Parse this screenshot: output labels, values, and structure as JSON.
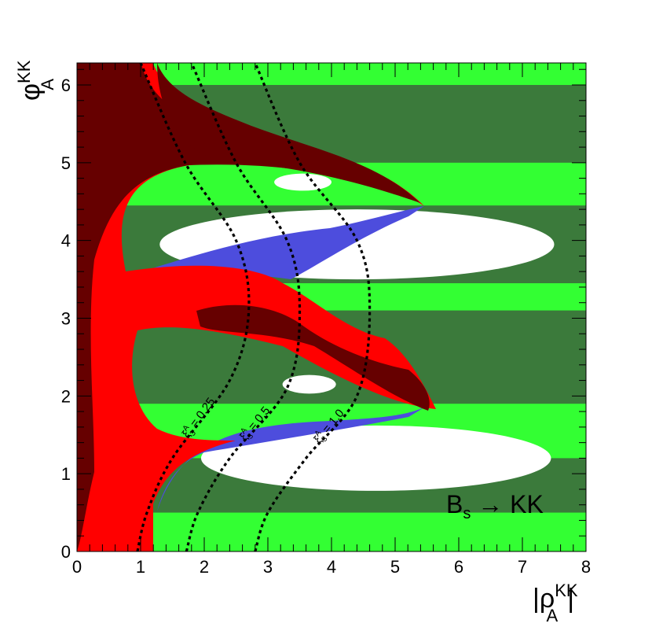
{
  "chart_data": {
    "type": "heatmap",
    "title": "",
    "xlabel": {
      "main": "|ρ",
      "sup": "KK",
      "sub": "A",
      "tail": "|"
    },
    "ylabel": {
      "main": "φ",
      "sup": "KK",
      "sub": "A"
    },
    "xlim": [
      0,
      8
    ],
    "ylim": [
      0,
      6.2832
    ],
    "xticks": [
      "0",
      "1",
      "2",
      "3",
      "4",
      "5",
      "6",
      "7",
      "8"
    ],
    "yticks": [
      "0",
      "1",
      "2",
      "3",
      "4",
      "5",
      "6"
    ],
    "grid": false,
    "colors": {
      "background_bright": "#33ff33",
      "background_dark": "#3b7a3b",
      "allowed_white": "#ffffff",
      "blue_band": "#4d4ddd",
      "red_region": "#ff0000",
      "dark_red_region": "#660000",
      "contour": "#000000"
    },
    "bright_bands_phi": [
      [
        0.0,
        0.5
      ],
      [
        1.2,
        1.9
      ],
      [
        3.1,
        3.45
      ],
      [
        4.45,
        5.0
      ],
      [
        6.0,
        6.2832
      ]
    ],
    "white_regions": [
      {
        "cx": 4.7,
        "cy": 1.2,
        "rx": 2.75,
        "ry": 0.42
      },
      {
        "cx": 4.4,
        "cy": 3.95,
        "rx": 3.1,
        "ry": 0.45
      },
      {
        "cx": 3.65,
        "cy": 2.15,
        "rx": 0.42,
        "ry": 0.12
      },
      {
        "cx": 3.55,
        "cy": 4.75,
        "rx": 0.45,
        "ry": 0.11
      }
    ],
    "contours": [
      {
        "label": "ξ3A = 0.25",
        "label_display": {
          "main": "ξ",
          "sub": "3",
          "sup": "A",
          "value": " = 0.25"
        },
        "points": [
          [
            0.95,
            0.0
          ],
          [
            1.1,
            0.5
          ],
          [
            1.5,
            1.2
          ],
          [
            2.4,
            2.2
          ],
          [
            2.7,
            3.1
          ],
          [
            2.5,
            4.0
          ],
          [
            1.7,
            5.0
          ],
          [
            1.0,
            6.2832
          ]
        ]
      },
      {
        "label": "ξ3A = 0.5",
        "label_display": {
          "main": "ξ",
          "sub": "3",
          "sup": "A",
          "value": " = 0.5"
        },
        "points": [
          [
            1.72,
            0.0
          ],
          [
            1.9,
            0.5
          ],
          [
            2.4,
            1.2
          ],
          [
            3.3,
            2.1
          ],
          [
            3.5,
            3.1
          ],
          [
            3.3,
            4.0
          ],
          [
            2.5,
            5.0
          ],
          [
            1.8,
            6.2832
          ]
        ]
      },
      {
        "label": "ξ3A = 1.0",
        "label_display": {
          "main": "ξ",
          "sub": "3",
          "sup": "A",
          "value": " = 1.0"
        },
        "points": [
          [
            2.8,
            0.0
          ],
          [
            3.0,
            0.5
          ],
          [
            3.6,
            1.2
          ],
          [
            4.4,
            2.0
          ],
          [
            4.6,
            3.1
          ],
          [
            4.4,
            4.0
          ],
          [
            3.5,
            5.0
          ],
          [
            2.8,
            6.2832
          ]
        ]
      }
    ],
    "annotation": {
      "main": "B",
      "sub": "s",
      "arrow": " → ",
      "tail": "KK"
    }
  }
}
